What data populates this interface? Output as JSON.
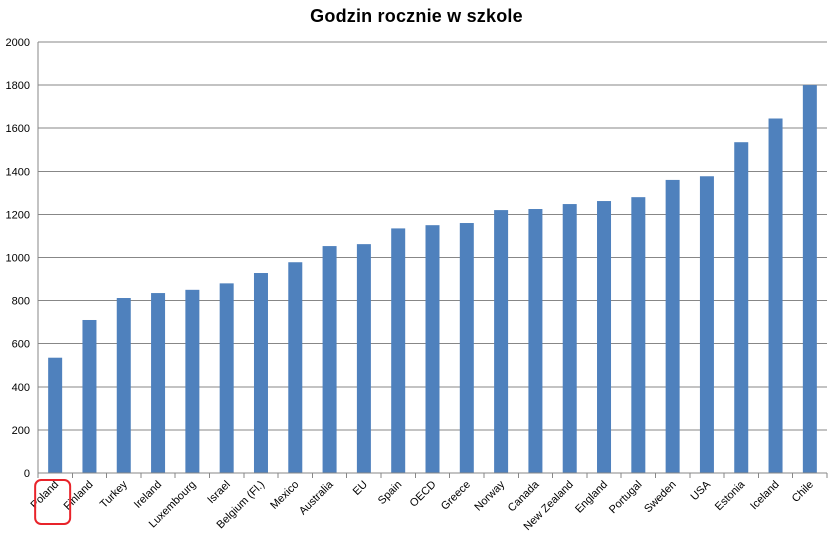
{
  "chart_data": {
    "type": "bar",
    "title": "Godzin rocznie w szkole",
    "xlabel": "",
    "ylabel": "",
    "ylim": [
      0,
      2000
    ],
    "yticks": [
      0,
      200,
      400,
      600,
      800,
      1000,
      1200,
      1400,
      1600,
      1800,
      2000
    ],
    "grid": true,
    "legend": "none",
    "categories": [
      "Poland",
      "Finland",
      "Turkey",
      "Ireland",
      "Luxembourg",
      "Israel",
      "Belgium (Fl.)",
      "Mexico",
      "Australia",
      "EU",
      "Spain",
      "OECD",
      "Greece",
      "Norway",
      "Canada",
      "New Zealand",
      "England",
      "Portugal",
      "Sweden",
      "USA",
      "Estonia",
      "Iceland",
      "Chile"
    ],
    "values": [
      535,
      710,
      812,
      835,
      850,
      880,
      928,
      978,
      1053,
      1062,
      1135,
      1150,
      1160,
      1220,
      1225,
      1248,
      1262,
      1280,
      1360,
      1377,
      1535,
      1645,
      1800
    ],
    "bar_color": "#4f81bd",
    "highlight_category": "Poland",
    "highlight_color": "#e8232a"
  }
}
